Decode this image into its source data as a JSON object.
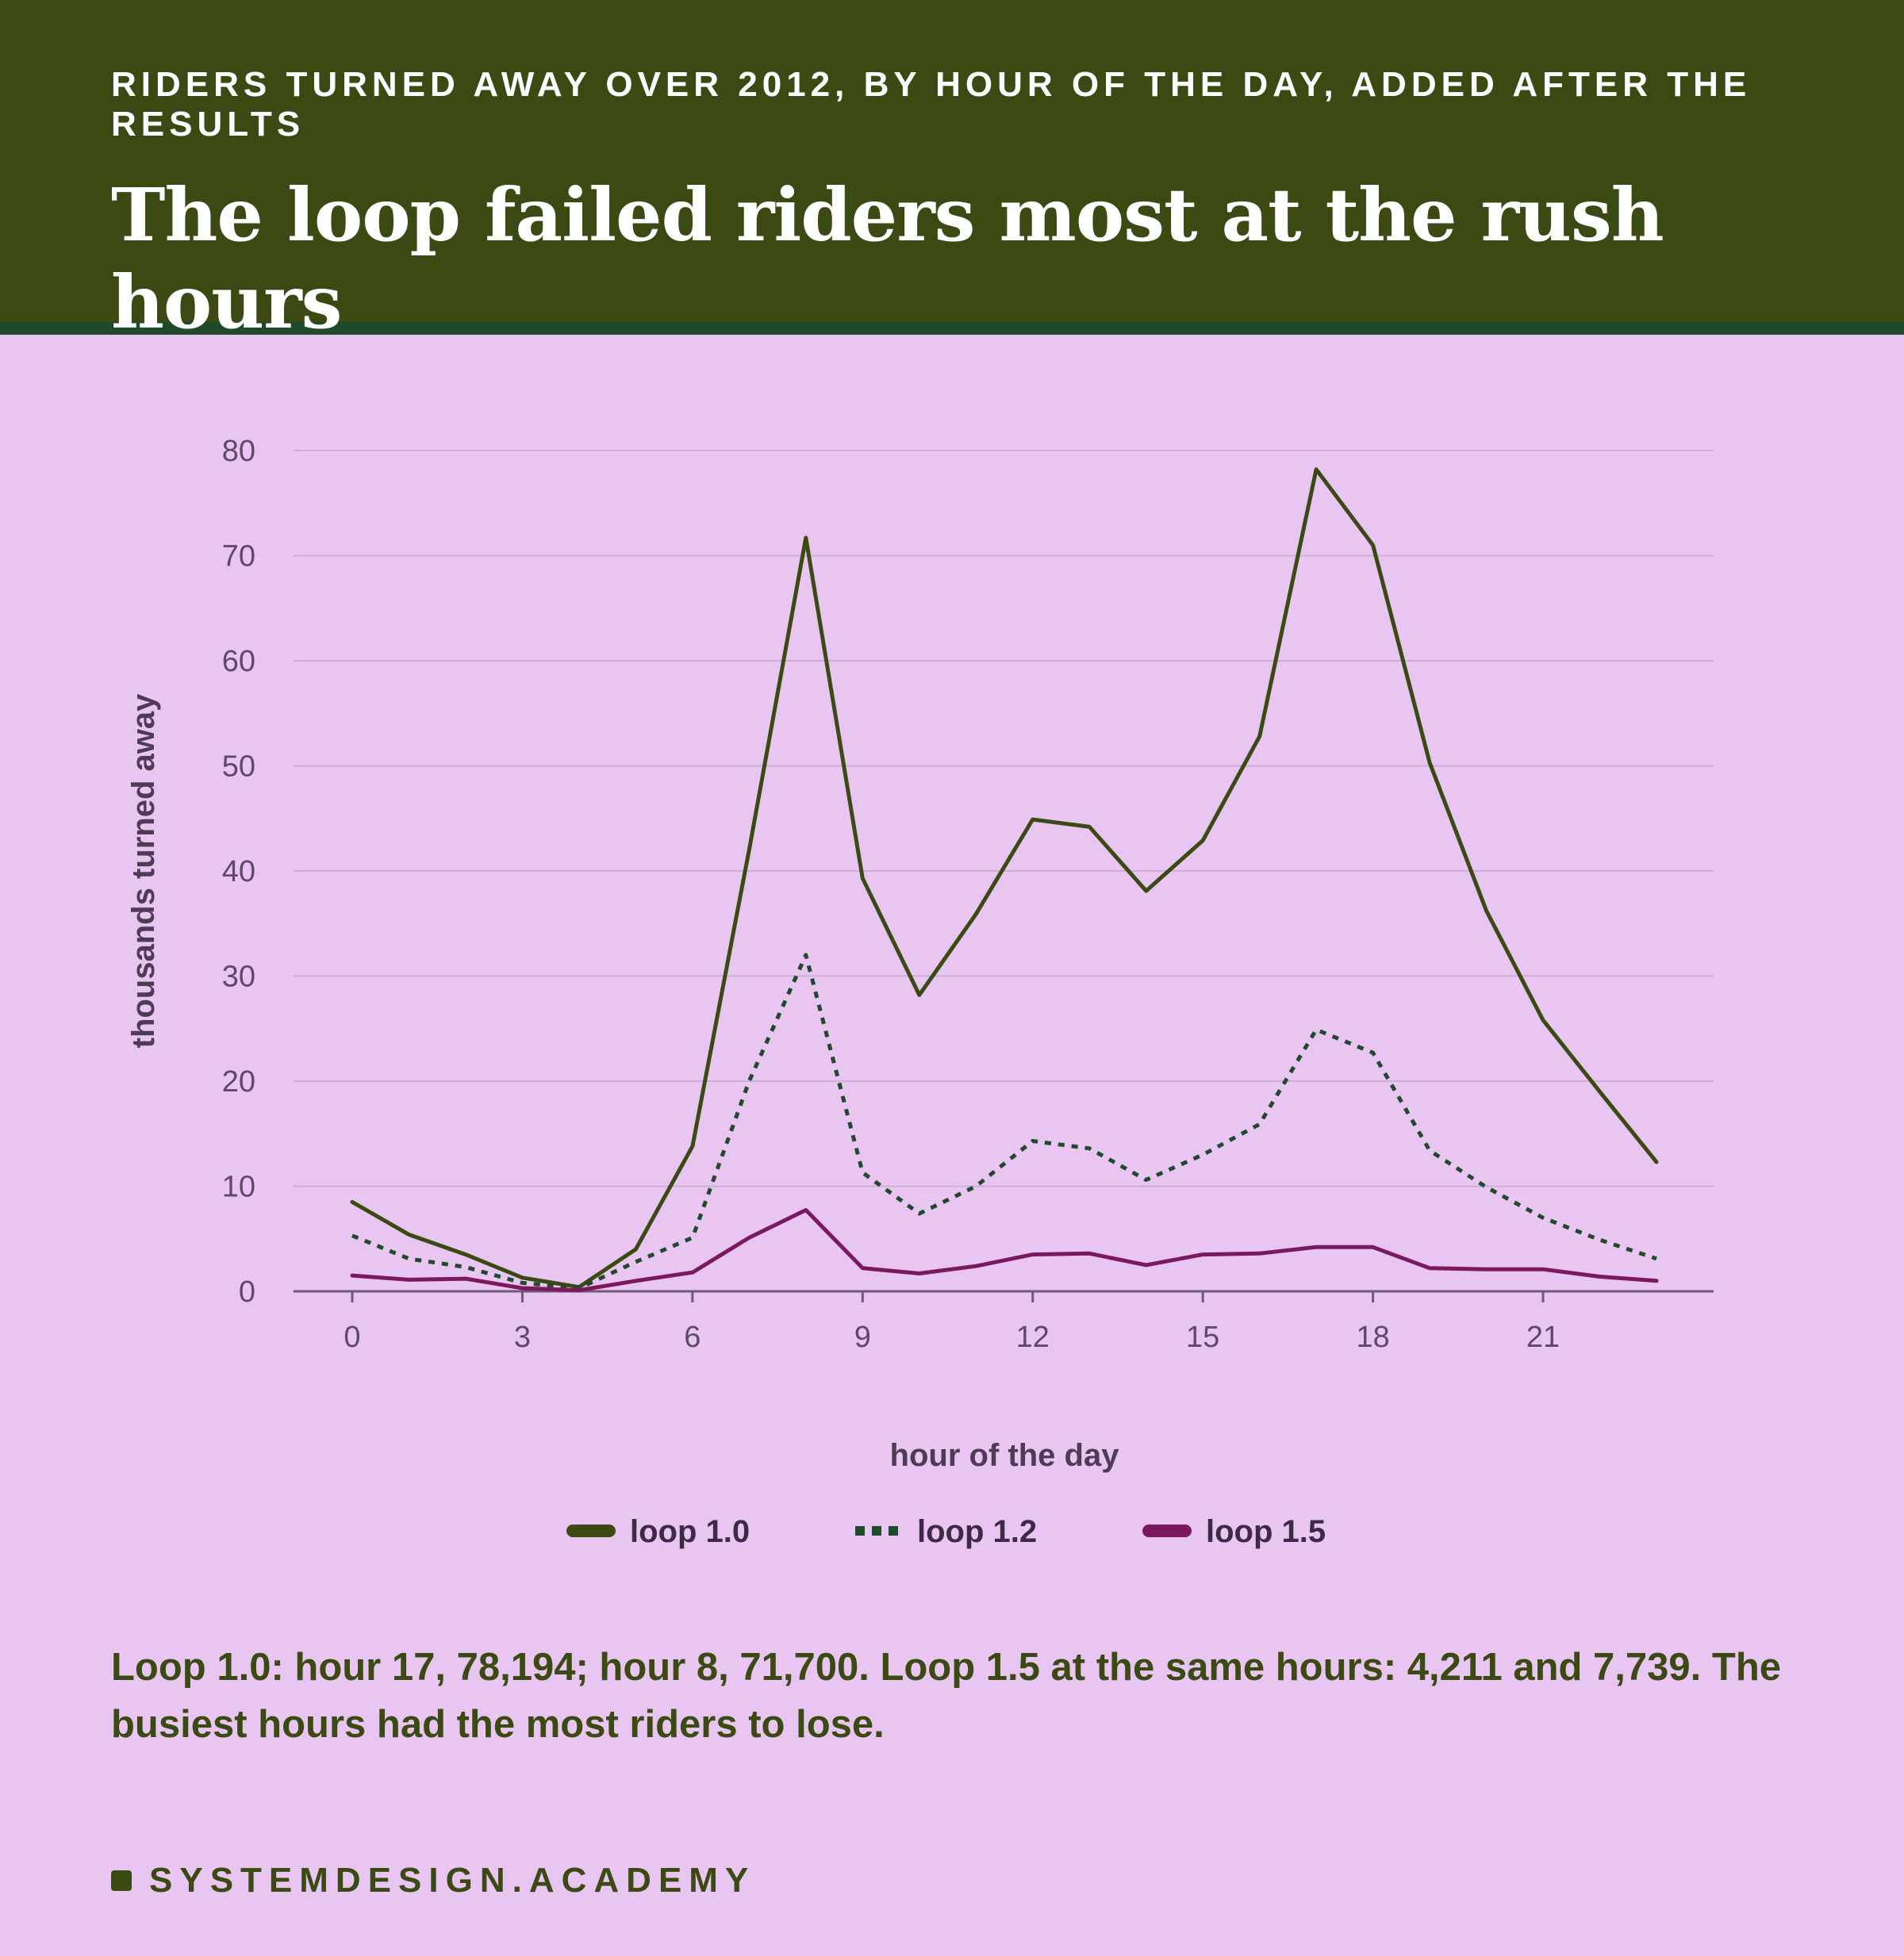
{
  "header": {
    "kicker": "Riders turned away over 2012, by hour of the day, added after the results",
    "title": "The loop failed riders most at the rush hours"
  },
  "chart_data": {
    "type": "line",
    "xlabel": "hour of the day",
    "ylabel": "thousands turned away",
    "xlim": [
      0,
      23
    ],
    "ylim": [
      0,
      80
    ],
    "x_ticks": [
      0,
      3,
      6,
      9,
      12,
      15,
      18,
      21
    ],
    "y_ticks": [
      0,
      10,
      20,
      30,
      40,
      50,
      60,
      70,
      80
    ],
    "grid": "horizontal",
    "legend": "bottom-center",
    "x": [
      0,
      1,
      2,
      3,
      4,
      5,
      6,
      7,
      8,
      9,
      10,
      11,
      12,
      13,
      14,
      15,
      16,
      17,
      18,
      19,
      20,
      21,
      22,
      23
    ],
    "series": [
      {
        "name": "loop 1.0",
        "color": "#3b4a13",
        "style": "solid",
        "values": [
          8.5,
          5.4,
          3.5,
          1.3,
          0.4,
          4.0,
          13.8,
          42.0,
          71.7,
          39.3,
          28.2,
          35.9,
          44.9,
          44.2,
          38.1,
          42.9,
          52.8,
          78.2,
          71.0,
          50.3,
          36.2,
          25.8,
          19.0,
          12.3
        ]
      },
      {
        "name": "loop 1.2",
        "color": "#1f4a2c",
        "style": "dotted",
        "values": [
          5.3,
          3.1,
          2.3,
          0.8,
          0.3,
          2.8,
          5.1,
          20.0,
          32.0,
          11.3,
          7.4,
          10.0,
          14.3,
          13.6,
          10.6,
          13.0,
          15.9,
          24.9,
          22.7,
          13.4,
          9.9,
          7.0,
          4.9,
          3.1
        ]
      },
      {
        "name": "loop 1.5",
        "color": "#7a1a5c",
        "style": "solid",
        "values": [
          1.5,
          1.1,
          1.2,
          0.3,
          0.1,
          1.0,
          1.8,
          5.1,
          7.739,
          2.2,
          1.7,
          2.4,
          3.5,
          3.6,
          2.5,
          3.5,
          3.6,
          4.211,
          4.2,
          2.2,
          2.1,
          2.1,
          1.4,
          1.0
        ]
      }
    ]
  },
  "caption": "Loop 1.0: hour 17, 78,194; hour 8, 71,700. Loop 1.5 at the same hours: 4,211 and 7,739. The busiest hours had the most riders to lose.",
  "footer": {
    "brand": "SYSTEMDESIGN.ACADEMY",
    "brand_icon": "square-icon"
  }
}
